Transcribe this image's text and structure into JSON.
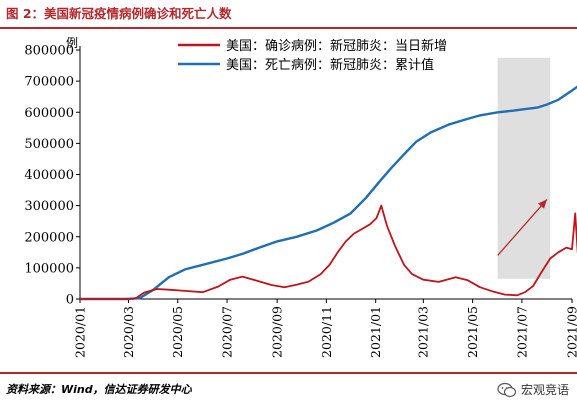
{
  "figure": {
    "title": "图 2：美国新冠疫情病例确诊和死亡人数",
    "source": "资料来源：Wind，信达证券研发中心",
    "watermark": "宏观竞语",
    "watermark_icon": "wechat-icon"
  },
  "colors": {
    "accent": "#b3282d",
    "cases": "#c0141c",
    "deaths": "#1f6fb2",
    "highlight": "#d9d9d9",
    "arrow": "#b3282d"
  },
  "chart_data": {
    "type": "line",
    "title": "",
    "ylabel": "例",
    "xlabel": "",
    "ylim": [
      0,
      800000
    ],
    "yticks": [
      0,
      100000,
      200000,
      300000,
      400000,
      500000,
      600000,
      700000,
      800000
    ],
    "ytick_labels": [
      "0",
      "100000",
      "200000",
      "300000",
      "400000",
      "500000",
      "600000",
      "700000",
      "800000"
    ],
    "xlim": [
      "2020-01",
      "2021-09"
    ],
    "xticks": [
      "2020/01",
      "2020/03",
      "2020/05",
      "2020/07",
      "2020/09",
      "2020/11",
      "2021/01",
      "2021/03",
      "2021/05",
      "2021/07",
      "2021/09"
    ],
    "grid": false,
    "legend_position": "top-center",
    "highlight_region": {
      "x_start": "2021-06-01",
      "x_end": "2021-08-05",
      "y_start": 65000,
      "y_end": 775000
    },
    "annotation_arrow": {
      "from": [
        "2021-06-01",
        140000
      ],
      "to": [
        "2021-08-01",
        320000
      ]
    },
    "series": [
      {
        "name": "美国：确诊病例：新冠肺炎：当日新增",
        "axis": "left",
        "x": [
          "2020-01-01",
          "2020-02-01",
          "2020-02-25",
          "2020-03-10",
          "2020-03-20",
          "2020-04-05",
          "2020-04-20",
          "2020-05-10",
          "2020-06-01",
          "2020-06-20",
          "2020-07-05",
          "2020-07-20",
          "2020-08-05",
          "2020-08-25",
          "2020-09-10",
          "2020-09-25",
          "2020-10-10",
          "2020-10-25",
          "2020-11-05",
          "2020-11-15",
          "2020-11-25",
          "2020-12-05",
          "2020-12-15",
          "2020-12-25",
          "2021-01-02",
          "2021-01-08",
          "2021-01-15",
          "2021-01-25",
          "2021-02-05",
          "2021-02-15",
          "2021-03-01",
          "2021-03-20",
          "2021-04-10",
          "2021-04-25",
          "2021-05-10",
          "2021-05-25",
          "2021-06-10",
          "2021-06-25",
          "2021-07-05",
          "2021-07-15",
          "2021-07-25",
          "2021-08-05",
          "2021-08-15",
          "2021-08-25",
          "2021-09-01",
          "2021-09-05",
          "2021-09-08",
          "2021-09-12"
        ],
        "values": [
          0,
          0,
          0,
          2000,
          20000,
          32000,
          30000,
          26000,
          22000,
          40000,
          62000,
          72000,
          60000,
          45000,
          38000,
          46000,
          56000,
          80000,
          110000,
          150000,
          185000,
          210000,
          225000,
          240000,
          260000,
          300000,
          235000,
          170000,
          110000,
          80000,
          62000,
          55000,
          70000,
          60000,
          38000,
          25000,
          14000,
          12000,
          22000,
          42000,
          85000,
          130000,
          150000,
          165000,
          160000,
          275000,
          150000,
          100000
        ]
      },
      {
        "name": "美国：死亡病例：新冠肺炎：累计值",
        "axis": "left",
        "x": [
          "2020-01-01",
          "2020-03-01",
          "2020-03-15",
          "2020-04-01",
          "2020-04-20",
          "2020-05-10",
          "2020-06-01",
          "2020-07-01",
          "2020-07-20",
          "2020-08-10",
          "2020-09-01",
          "2020-09-25",
          "2020-10-20",
          "2020-11-10",
          "2020-12-01",
          "2020-12-20",
          "2021-01-05",
          "2021-01-20",
          "2021-02-05",
          "2021-02-20",
          "2021-03-10",
          "2021-04-01",
          "2021-04-20",
          "2021-05-10",
          "2021-06-01",
          "2021-06-20",
          "2021-07-05",
          "2021-07-20",
          "2021-08-01",
          "2021-08-15",
          "2021-09-01",
          "2021-09-12"
        ],
        "values": [
          0,
          0,
          3000,
          30000,
          70000,
          95000,
          110000,
          130000,
          145000,
          165000,
          185000,
          200000,
          220000,
          245000,
          275000,
          325000,
          375000,
          420000,
          465000,
          505000,
          535000,
          560000,
          575000,
          590000,
          600000,
          605000,
          610000,
          615000,
          625000,
          640000,
          670000,
          690000
        ]
      }
    ]
  }
}
